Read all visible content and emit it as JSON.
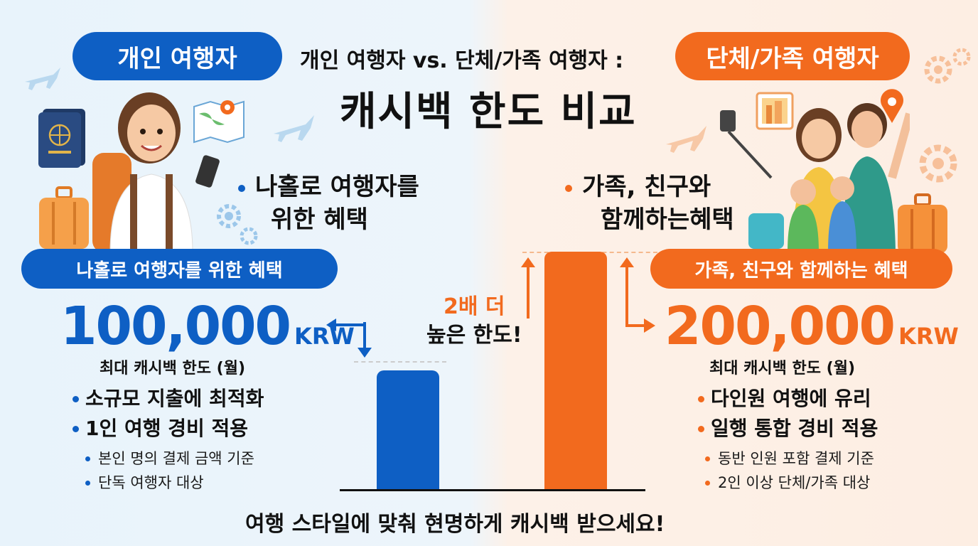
{
  "header": {
    "left_badge": "개인 여행자",
    "subtitle": "개인 여행자 vs. 단체/가족 여행자 :",
    "right_badge": "단체/가족 여행자",
    "title": "캐시백 한도 비교"
  },
  "individual": {
    "benefit_line1": "나홀로 여행자를",
    "benefit_line2": "위한 혜택",
    "pill": "나홀로 여행자를 위한 혜택",
    "amount": "100,000",
    "unit": "KRW",
    "caption": "최대 캐시백 한도 (월)",
    "points": [
      "소규모 지출에 최적화",
      "1인 여행 경비 적용"
    ],
    "details": [
      "본인 명의 결제 금액 기준",
      "단독 여행자 대상"
    ]
  },
  "group": {
    "benefit_line1": "가족, 친구와",
    "benefit_line2": "함께하는혜택",
    "pill": "가족, 친구와 함께하는 혜택",
    "amount": "200,000",
    "unit": "KRW",
    "caption": "최대 캐시백 한도 (월)",
    "points": [
      "다인원 여행에 유리",
      "일행 통합 경비 적용"
    ],
    "details": [
      "동반 인원 포함 결제 기준",
      "2인 이상 단체/가족 대상"
    ]
  },
  "callout": {
    "line1": "2배 더",
    "line2": "높은 한도!"
  },
  "footer": "여행 스타일에 맞춰 현명하게 캐시백 받으세요!",
  "colors": {
    "blue": "#0e5fc4",
    "orange": "#f26a1e"
  },
  "chart_data": {
    "type": "bar",
    "categories": [
      "개인 여행자",
      "단체/가족 여행자"
    ],
    "values": [
      100000,
      200000
    ],
    "ylim": [
      0,
      200000
    ],
    "grid": false
  },
  "icons": [
    "airplane-icon",
    "passport-icon",
    "map-icon",
    "location-pin-icon",
    "gear-icon",
    "luggage-icon",
    "smartphone-icon",
    "selfie-stick-icon",
    "photo-icon"
  ]
}
